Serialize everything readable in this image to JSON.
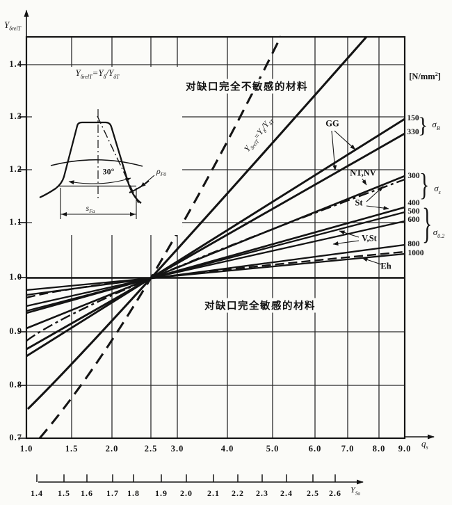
{
  "figure": {
    "y_axis": {
      "label_base": "Y",
      "label_sub": "δrelT",
      "ticks": [
        "1.4",
        "1.3",
        "1.2",
        "1.1",
        "1.0",
        "0.9",
        "0.8",
        "0.7"
      ]
    },
    "x_axis": {
      "label_base": "q",
      "label_sub": "s",
      "ticks": [
        "1.0",
        "1.5",
        "2.0",
        "2.5",
        "3.0",
        "4.0",
        "5.0",
        "6.0",
        "7.0",
        "8.0",
        "9.0"
      ]
    },
    "ysa_axis": {
      "label_base": "Y",
      "label_sub": "Sa",
      "ticks": [
        "1.4",
        "1.5",
        "1.6",
        "1.7",
        "1.8",
        "1.9",
        "2.0",
        "2.1",
        "2.2",
        "2.3",
        "2.4",
        "2.5",
        "2.6"
      ]
    },
    "unit": {
      "pre": "[N/mm",
      "sup": "2",
      "post": "]"
    },
    "formula": {
      "y": "Y",
      "sub_relT": "δrelT",
      "eq": "=",
      "sub_d": "δ",
      "slash": "/",
      "sub_dT": "δT"
    },
    "notes": {
      "insensitive": "对缺口完全不敏感的材料",
      "sensitive": "对缺口完全敏感的材料"
    },
    "materials": {
      "gg": "GG",
      "ntnv": "NT,NV",
      "st": "St",
      "vst": "V,St",
      "eh": "Eh"
    },
    "sigma": {
      "b_base": "σ",
      "b_sub": "B",
      "s_base": "σ",
      "s_sub": "s",
      "p_base": "σ",
      "p_sub": "0.2"
    },
    "strength_values": {
      "gg": [
        "150",
        "330"
      ],
      "sigma_s": [
        "300",
        "400"
      ],
      "sigma_02": [
        "500",
        "600",
        "800",
        "1000"
      ]
    },
    "brace": "}",
    "tooth": {
      "angle": "30°",
      "rho_base": "ρ",
      "rho_sub": "F0",
      "s_base": "s",
      "s_sub": "Fa"
    }
  },
  "chart_data": {
    "type": "line",
    "title": "Relative notch sensitivity factor chart",
    "xlabel": "qs",
    "ylabel": "YδrelT",
    "x_axis": {
      "scale": "log-like",
      "range": [
        1.0,
        9.0
      ],
      "ticks": [
        1.0,
        1.5,
        2.0,
        2.5,
        3.0,
        4.0,
        5.0,
        6.0,
        7.0,
        8.0,
        9.0
      ]
    },
    "y_axis": {
      "scale": "linear",
      "range": [
        0.7,
        1.45
      ],
      "ticks": [
        0.7,
        0.8,
        0.9,
        1.0,
        1.1,
        1.2,
        1.3,
        1.4
      ]
    },
    "secondary_x_axis": {
      "label": "YSa",
      "ticks": [
        1.4,
        1.5,
        1.6,
        1.7,
        1.8,
        1.9,
        2.0,
        2.1,
        2.2,
        2.3,
        2.4,
        2.5,
        2.6
      ]
    },
    "unit": "N/mm2",
    "pivot_point": {
      "qs": 2.5,
      "y": 1.0
    },
    "grid": true,
    "series": [
      {
        "name": "GG sigmaB=150",
        "style": "solid",
        "points": [
          [
            1.0,
            0.853
          ],
          [
            2.5,
            1.0
          ],
          [
            9.0,
            1.3
          ]
        ]
      },
      {
        "name": "GG sigmaB=330",
        "style": "solid",
        "points": [
          [
            1.0,
            0.866
          ],
          [
            2.5,
            1.0
          ],
          [
            9.0,
            1.27
          ]
        ]
      },
      {
        "name": "St sigmas=300",
        "style": "solid",
        "points": [
          [
            1.0,
            0.905
          ],
          [
            2.5,
            1.0
          ],
          [
            9.0,
            1.19
          ]
        ]
      },
      {
        "name": "St sigmas=400",
        "style": "solid",
        "points": [
          [
            1.0,
            0.934
          ],
          [
            2.5,
            1.0
          ],
          [
            9.0,
            1.135
          ]
        ]
      },
      {
        "name": "V,St sigma0.2=500",
        "style": "solid",
        "points": [
          [
            1.0,
            0.938
          ],
          [
            2.5,
            1.0
          ],
          [
            9.0,
            1.125
          ]
        ]
      },
      {
        "name": "V,St sigma0.2=600",
        "style": "solid",
        "points": [
          [
            1.0,
            0.947
          ],
          [
            2.5,
            1.0
          ],
          [
            9.0,
            1.107
          ]
        ]
      },
      {
        "name": "V,St sigma0.2=800",
        "style": "solid",
        "points": [
          [
            1.0,
            0.968
          ],
          [
            2.5,
            1.0
          ],
          [
            9.0,
            1.062
          ]
        ]
      },
      {
        "name": "V,St sigma0.2=1000",
        "style": "solid",
        "points": [
          [
            1.0,
            0.977
          ],
          [
            2.5,
            1.0
          ],
          [
            9.0,
            1.045
          ]
        ]
      },
      {
        "name": "NT,NV nitrided",
        "style": "dash-dot",
        "points": [
          [
            1.0,
            0.882
          ],
          [
            2.5,
            1.0
          ],
          [
            9.0,
            1.185
          ]
        ]
      },
      {
        "name": "Eh case-hardened",
        "style": "dashed",
        "points": [
          [
            1.0,
            0.963
          ],
          [
            2.5,
            1.0
          ],
          [
            9.0,
            1.05
          ]
        ]
      },
      {
        "name": "fully notch-insensitive material",
        "style": "dashed-steep",
        "points": [
          [
            1.06,
            0.7
          ],
          [
            2.5,
            1.0
          ],
          [
            5.2,
            1.45
          ]
        ]
      },
      {
        "name": "reference line YdrelT=Yd/YdT",
        "style": "solid-steep",
        "points": [
          [
            1.0,
            0.753
          ],
          [
            2.5,
            1.0
          ],
          [
            7.5,
            1.45
          ]
        ]
      },
      {
        "name": "fully notch-sensitive material",
        "style": "solid-horizontal",
        "points": [
          [
            1.0,
            1.0
          ],
          [
            9.0,
            1.0
          ]
        ]
      }
    ]
  }
}
